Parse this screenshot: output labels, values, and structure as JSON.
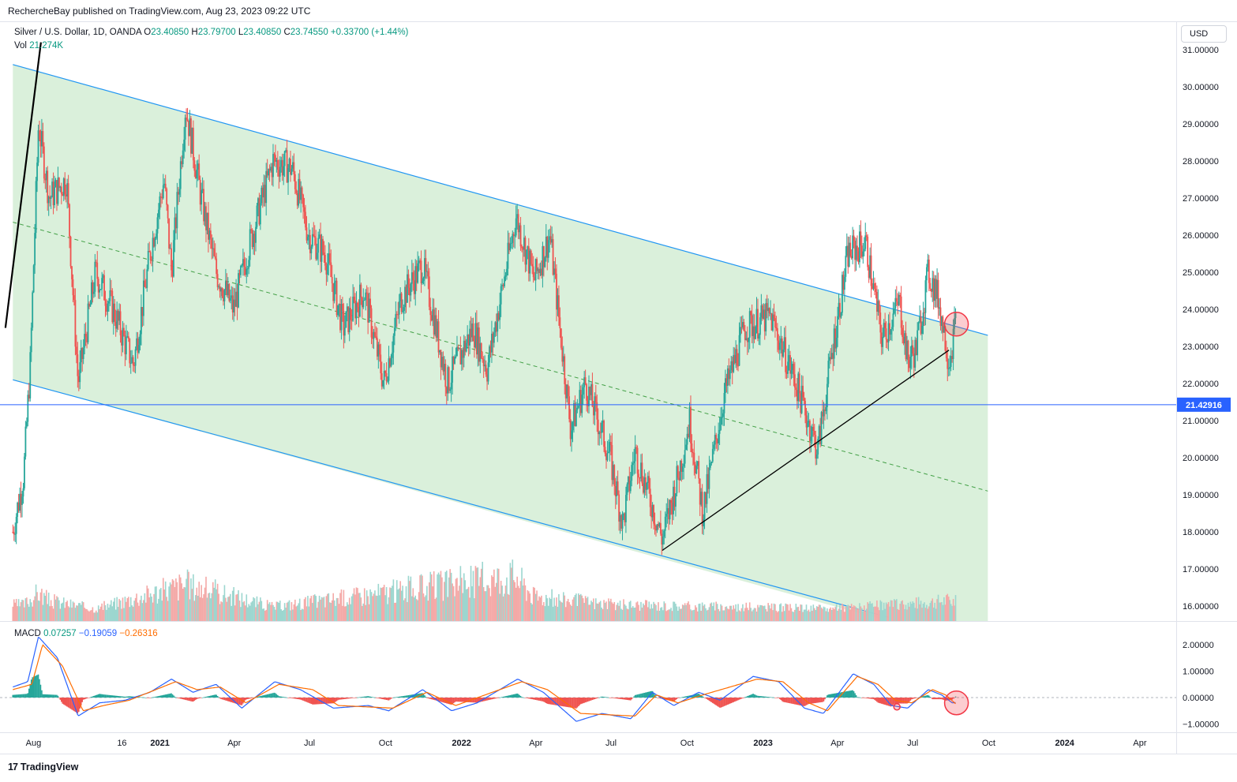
{
  "header": {
    "published": "RechercheBay published on TradingView.com, Aug 23, 2023 09:22 UTC"
  },
  "legend": {
    "symbol": "Silver / U.S. Dollar, 1D, OANDA",
    "o_label": "O",
    "o": "23.40850",
    "h_label": "H",
    "h": "23.79700",
    "l_label": "L",
    "l": "23.40850",
    "c_label": "C",
    "c": "23.74550",
    "change": "+0.33700 (+1.44%)",
    "vol_label": "Vol",
    "vol": "21.274K"
  },
  "macd_legend": {
    "label": "MACD",
    "v1": "0.07257",
    "v2": "−0.19059",
    "v3": "−0.26316"
  },
  "currency_button": "USD",
  "footer": {
    "logo": "17",
    "brand": "TradingView"
  },
  "colors": {
    "up": "#26a69a",
    "down": "#ef5350",
    "channel_fill": "#d8efd9",
    "channel_line": "#2196f3",
    "macd": "#2962ff",
    "signal": "#ff6d00",
    "horizontal_line": "#2962ff",
    "circle": "#f23645"
  },
  "chart_data": {
    "type": "line",
    "price_axis_ticks": [
      "31.00000",
      "30.00000",
      "29.00000",
      "28.00000",
      "27.00000",
      "26.00000",
      "25.00000",
      "24.00000",
      "23.00000",
      "22.00000",
      "21.00000",
      "20.00000",
      "19.00000",
      "18.00000",
      "17.00000",
      "16.00000"
    ],
    "macd_axis_ticks": [
      "2.00000",
      "1.00000",
      "0.00000",
      "−1.00000"
    ],
    "time_axis": [
      {
        "label": "Aug",
        "bold": false
      },
      {
        "label": "16",
        "bold": false
      },
      {
        "label": "2021",
        "bold": true
      },
      {
        "label": "Apr",
        "bold": false
      },
      {
        "label": "Jul",
        "bold": false
      },
      {
        "label": "Oct",
        "bold": false
      },
      {
        "label": "2022",
        "bold": true
      },
      {
        "label": "Apr",
        "bold": false
      },
      {
        "label": "Jul",
        "bold": false
      },
      {
        "label": "Oct",
        "bold": false
      },
      {
        "label": "2023",
        "bold": true
      },
      {
        "label": "Apr",
        "bold": false
      },
      {
        "label": "Jul",
        "bold": false
      },
      {
        "label": "Oct",
        "bold": false
      },
      {
        "label": "2024",
        "bold": true
      },
      {
        "label": "Apr",
        "bold": false
      }
    ],
    "horizontal_level": {
      "value": 21.42916,
      "label": "21.42916"
    },
    "price_series": [
      [
        "2020-07-07",
        18.0
      ],
      [
        "2020-07-20",
        19.5
      ],
      [
        "2020-07-28",
        22.5
      ],
      [
        "2020-08-07",
        29.0
      ],
      [
        "2020-08-20",
        27.0
      ],
      [
        "2020-09-10",
        27.5
      ],
      [
        "2020-09-24",
        22.0
      ],
      [
        "2020-10-15",
        25.0
      ],
      [
        "2020-11-05",
        24.0
      ],
      [
        "2020-11-30",
        22.5
      ],
      [
        "2020-12-20",
        25.5
      ],
      [
        "2021-01-06",
        27.5
      ],
      [
        "2021-01-15",
        25.0
      ],
      [
        "2021-02-01",
        29.5
      ],
      [
        "2021-02-20",
        27.0
      ],
      [
        "2021-03-10",
        25.0
      ],
      [
        "2021-03-31",
        24.0
      ],
      [
        "2021-04-20",
        25.8
      ],
      [
        "2021-05-18",
        28.0
      ],
      [
        "2021-06-10",
        27.8
      ],
      [
        "2021-06-30",
        26.0
      ],
      [
        "2021-07-20",
        25.5
      ],
      [
        "2021-08-11",
        23.5
      ],
      [
        "2021-09-05",
        24.5
      ],
      [
        "2021-09-29",
        22.0
      ],
      [
        "2021-10-20",
        24.3
      ],
      [
        "2021-11-15",
        25.2
      ],
      [
        "2021-12-15",
        22.0
      ],
      [
        "2022-01-15",
        23.5
      ],
      [
        "2022-02-01",
        22.4
      ],
      [
        "2022-03-08",
        26.5
      ],
      [
        "2022-03-30",
        24.8
      ],
      [
        "2022-04-18",
        26.0
      ],
      [
        "2022-05-13",
        20.8
      ],
      [
        "2022-05-31",
        22.0
      ],
      [
        "2022-06-30",
        20.0
      ],
      [
        "2022-07-15",
        18.2
      ],
      [
        "2022-07-30",
        20.2
      ],
      [
        "2022-09-01",
        17.8
      ],
      [
        "2022-09-20",
        19.5
      ],
      [
        "2022-10-04",
        21.0
      ],
      [
        "2022-10-20",
        18.5
      ],
      [
        "2022-11-15",
        21.7
      ],
      [
        "2022-12-10",
        23.5
      ],
      [
        "2023-01-10",
        23.8
      ],
      [
        "2023-02-10",
        22.0
      ],
      [
        "2023-03-08",
        20.2
      ],
      [
        "2023-03-25",
        22.8
      ],
      [
        "2023-04-14",
        25.5
      ],
      [
        "2023-05-05",
        25.8
      ],
      [
        "2023-05-25",
        23.2
      ],
      [
        "2023-06-15",
        24.2
      ],
      [
        "2023-06-25",
        22.6
      ],
      [
        "2023-07-05",
        22.9
      ],
      [
        "2023-07-20",
        25.0
      ],
      [
        "2023-08-01",
        24.3
      ],
      [
        "2023-08-14",
        22.6
      ],
      [
        "2023-08-23",
        23.75
      ]
    ],
    "volume_series": [
      [
        "2020-07-20",
        0.3
      ],
      [
        "2020-08-07",
        0.6
      ],
      [
        "2020-08-20",
        0.4
      ],
      [
        "2020-10-15",
        0.2
      ],
      [
        "2021-02-01",
        0.8
      ],
      [
        "2021-05-18",
        0.25
      ],
      [
        "2022-03-08",
        1.0
      ],
      [
        "2022-03-30",
        0.5
      ],
      [
        "2022-06-30",
        0.3
      ],
      [
        "2023-03-25",
        0.2
      ],
      [
        "2023-07-20",
        0.35
      ],
      [
        "2023-08-14",
        0.4
      ],
      [
        "2023-08-23",
        0.35
      ]
    ],
    "macd_series": [
      [
        "2020-07-07",
        0.4
      ],
      [
        "2020-07-25",
        0.6
      ],
      [
        "2020-08-07",
        2.3
      ],
      [
        "2020-08-30",
        1.5
      ],
      [
        "2020-09-24",
        -0.7
      ],
      [
        "2020-10-20",
        -0.2
      ],
      [
        "2020-11-20",
        -0.1
      ],
      [
        "2020-12-20",
        0.2
      ],
      [
        "2021-01-15",
        0.7
      ],
      [
        "2021-02-10",
        0.2
      ],
      [
        "2021-03-10",
        0.5
      ],
      [
        "2021-04-10",
        -0.4
      ],
      [
        "2021-05-20",
        0.6
      ],
      [
        "2021-06-20",
        0.3
      ],
      [
        "2021-07-30",
        -0.4
      ],
      [
        "2021-09-10",
        -0.3
      ],
      [
        "2021-10-05",
        -0.5
      ],
      [
        "2021-11-15",
        0.3
      ],
      [
        "2021-12-20",
        -0.5
      ],
      [
        "2022-01-20",
        -0.2
      ],
      [
        "2022-03-10",
        0.7
      ],
      [
        "2022-04-10",
        0.2
      ],
      [
        "2022-05-20",
        -0.9
      ],
      [
        "2022-06-20",
        -0.6
      ],
      [
        "2022-07-25",
        -0.8
      ],
      [
        "2022-08-20",
        0.2
      ],
      [
        "2022-09-15",
        -0.3
      ],
      [
        "2022-10-15",
        0.2
      ],
      [
        "2022-11-10",
        -0.1
      ],
      [
        "2022-12-20",
        0.8
      ],
      [
        "2023-01-20",
        0.6
      ],
      [
        "2023-02-20",
        -0.4
      ],
      [
        "2023-03-15",
        -0.6
      ],
      [
        "2023-04-20",
        0.9
      ],
      [
        "2023-05-15",
        0.5
      ],
      [
        "2023-06-05",
        -0.3
      ],
      [
        "2023-06-25",
        -0.4
      ],
      [
        "2023-07-20",
        0.3
      ],
      [
        "2023-08-05",
        0.1
      ],
      [
        "2023-08-18",
        -0.2
      ],
      [
        "2023-08-23",
        -0.19
      ]
    ],
    "signal_series": [
      [
        "2020-07-07",
        0.3
      ],
      [
        "2020-07-30",
        0.5
      ],
      [
        "2020-08-12",
        2.0
      ],
      [
        "2020-09-05",
        1.2
      ],
      [
        "2020-09-30",
        -0.5
      ],
      [
        "2020-10-25",
        -0.3
      ],
      [
        "2020-11-25",
        -0.1
      ],
      [
        "2021-01-20",
        0.6
      ],
      [
        "2021-02-15",
        0.3
      ],
      [
        "2021-03-15",
        0.4
      ],
      [
        "2021-04-15",
        -0.2
      ],
      [
        "2021-05-25",
        0.5
      ],
      [
        "2021-07-05",
        0.3
      ],
      [
        "2021-08-05",
        -0.3
      ],
      [
        "2021-10-10",
        -0.4
      ],
      [
        "2021-11-20",
        0.2
      ],
      [
        "2021-12-25",
        -0.3
      ],
      [
        "2022-03-15",
        0.6
      ],
      [
        "2022-04-15",
        0.3
      ],
      [
        "2022-05-25",
        -0.6
      ],
      [
        "2022-07-30",
        -0.7
      ],
      [
        "2022-08-25",
        0.1
      ],
      [
        "2022-09-20",
        -0.2
      ],
      [
        "2022-10-20",
        0.1
      ],
      [
        "2022-12-25",
        0.7
      ],
      [
        "2023-01-25",
        0.6
      ],
      [
        "2023-02-25",
        -0.2
      ],
      [
        "2023-03-20",
        -0.5
      ],
      [
        "2023-04-25",
        0.8
      ],
      [
        "2023-05-20",
        0.5
      ],
      [
        "2023-06-10",
        -0.1
      ],
      [
        "2023-06-30",
        -0.2
      ],
      [
        "2023-07-25",
        0.3
      ],
      [
        "2023-08-10",
        0.1
      ],
      [
        "2023-08-23",
        -0.26
      ]
    ],
    "channel": {
      "upper": [
        [
          "2020-07-07",
          30.6
        ],
        [
          "2023-09-30",
          23.3
        ]
      ],
      "lower": [
        [
          "2020-07-07",
          22.1
        ],
        [
          "2023-06-01",
          15.7
        ]
      ],
      "mid": [
        [
          "2020-07-07",
          26.35
        ],
        [
          "2023-09-30",
          19.1
        ]
      ]
    },
    "trendlines": [
      {
        "from": [
          "2022-09-01",
          17.5
        ],
        "to": [
          "2023-08-14",
          22.9
        ]
      },
      {
        "from": [
          "2020-06-28",
          23.5
        ],
        "to": [
          "2020-08-10",
          31.2
        ]
      }
    ],
    "markers": [
      {
        "x": "2023-08-23",
        "y": 23.6,
        "pane": "price"
      },
      {
        "x": "2023-08-23",
        "y": -0.2,
        "pane": "macd"
      },
      {
        "x": "2023-06-12",
        "y": -0.35,
        "pane": "macd_small"
      }
    ]
  }
}
